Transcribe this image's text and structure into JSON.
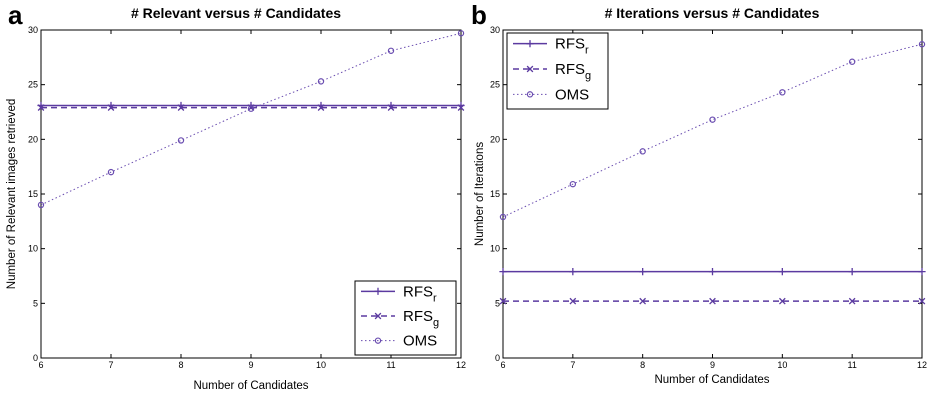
{
  "chart_data": [
    {
      "panel": "a",
      "type": "line",
      "title": "# Relevant versus # Candidates",
      "xlabel": "Number of Candidates",
      "ylabel": "Number of Relevant images retrieved",
      "xlim": [
        6,
        12
      ],
      "ylim": [
        0,
        30
      ],
      "xticks": [
        6,
        7,
        8,
        9,
        10,
        11,
        12
      ],
      "yticks": [
        0,
        5,
        10,
        15,
        20,
        25,
        30
      ],
      "legend_position": "bottom-right",
      "x": [
        6,
        7,
        8,
        9,
        10,
        11,
        12
      ],
      "series": [
        {
          "name": "RFS",
          "subscript": "r",
          "style": "solid",
          "marker": "plus",
          "color": "#5b3aa0",
          "values": [
            23.1,
            23.1,
            23.1,
            23.1,
            23.1,
            23.1,
            23.1
          ]
        },
        {
          "name": "RFS",
          "subscript": "g",
          "style": "dashed",
          "marker": "x",
          "color": "#5b3aa0",
          "values": [
            22.9,
            22.9,
            22.9,
            22.9,
            22.9,
            22.9,
            22.9
          ]
        },
        {
          "name": "OMS",
          "subscript": "",
          "style": "dotted",
          "marker": "circle",
          "color": "#6a4db0",
          "values": [
            14,
            17,
            19.9,
            22.8,
            25.3,
            28.1,
            29.7
          ]
        }
      ]
    },
    {
      "panel": "b",
      "type": "line",
      "title": "# Iterations versus # Candidates",
      "xlabel": "Number of Candidates",
      "ylabel": "Number of Iterations",
      "xlim": [
        6,
        12
      ],
      "ylim": [
        0,
        30
      ],
      "xticks": [
        6,
        7,
        8,
        9,
        10,
        11,
        12
      ],
      "yticks": [
        0,
        5,
        10,
        15,
        20,
        25,
        30
      ],
      "legend_position": "top-left",
      "x": [
        6,
        7,
        8,
        9,
        10,
        11,
        12
      ],
      "series": [
        {
          "name": "RFS",
          "subscript": "r",
          "style": "solid",
          "marker": "plus",
          "color": "#5b3aa0",
          "values": [
            7.9,
            7.9,
            7.9,
            7.9,
            7.9,
            7.9,
            7.9
          ]
        },
        {
          "name": "RFS",
          "subscript": "g",
          "style": "dashed",
          "marker": "x",
          "color": "#5b3aa0",
          "values": [
            5.2,
            5.2,
            5.2,
            5.2,
            5.2,
            5.2,
            5.2
          ]
        },
        {
          "name": "OMS",
          "subscript": "",
          "style": "dotted",
          "marker": "circle",
          "color": "#6a4db0",
          "values": [
            12.9,
            15.9,
            18.9,
            21.8,
            24.3,
            27.1,
            28.7
          ]
        }
      ]
    }
  ]
}
